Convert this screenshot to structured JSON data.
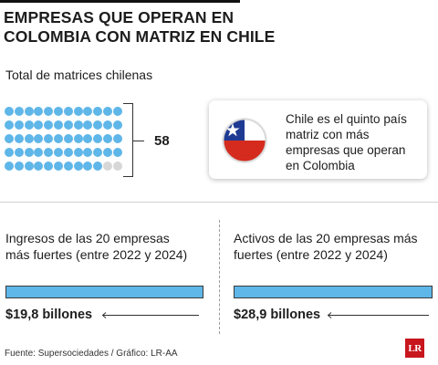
{
  "header": {
    "title_line1": "EMPRESAS QUE OPERAN EN",
    "title_line2": "COLOMBIA CON MATRIZ EN CHILE"
  },
  "matrices": {
    "subtitle": "Total de matrices chilenas",
    "total": 58,
    "total_label": "58",
    "grid_cells": 60,
    "dot_color": "#5fb6e8",
    "empty_dot_color": "#d7d7d7"
  },
  "callout": {
    "text": "Chile es el quinto país matriz con más empresas que operan en Colombia",
    "flag_icon": "chile-flag-icon",
    "flag_colors": {
      "blue": "#1f3a93",
      "red": "#d52b1e",
      "white": "#ffffff"
    }
  },
  "metrics": [
    {
      "label_line1": "Ingresos de las 20 empresas",
      "label_line2": "más fuertes (entre 2022 y 2024)",
      "value": "$19,8 billones"
    },
    {
      "label_line1": "Activos de las 20 empresas más",
      "label_line2": "fuertes (entre 2022 y 2024)",
      "value": "$28,9 billones"
    }
  ],
  "footer": {
    "source": "Fuente: Supersociedades / Gráfico: LR-AA",
    "logo_text": "LR",
    "logo_color": "#c8161d"
  }
}
